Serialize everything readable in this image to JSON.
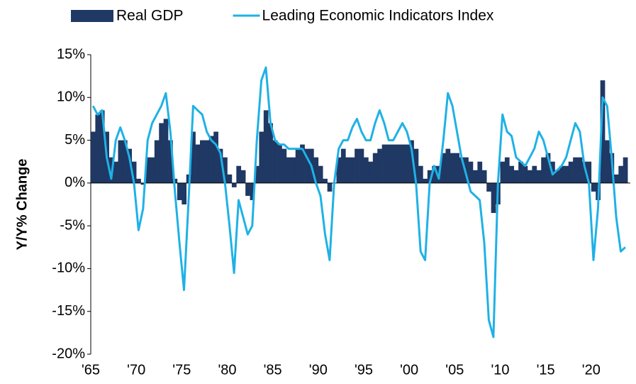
{
  "chart_data": {
    "type": "combo",
    "y_label": "Y/Y% Change",
    "x": [
      1965,
      1965.5,
      1966,
      1966.5,
      1967,
      1967.5,
      1968,
      1968.5,
      1969,
      1969.5,
      1970,
      1970.5,
      1971,
      1971.5,
      1972,
      1972.5,
      1973,
      1973.5,
      1974,
      1974.5,
      1975,
      1975.5,
      1976,
      1976.5,
      1977,
      1977.5,
      1978,
      1978.5,
      1979,
      1979.5,
      1980,
      1980.5,
      1981,
      1981.5,
      1982,
      1982.5,
      1983,
      1983.5,
      1984,
      1984.5,
      1985,
      1985.5,
      1986,
      1986.5,
      1987,
      1987.5,
      1988,
      1988.5,
      1989,
      1989.5,
      1990,
      1990.5,
      1991,
      1991.5,
      1992,
      1992.5,
      1993,
      1993.5,
      1994,
      1994.5,
      1995,
      1995.5,
      1996,
      1996.5,
      1997,
      1997.5,
      1998,
      1998.5,
      1999,
      1999.5,
      2000,
      2000.5,
      2001,
      2001.5,
      2002,
      2002.5,
      2003,
      2003.5,
      2004,
      2004.5,
      2005,
      2005.5,
      2006,
      2006.5,
      2007,
      2007.5,
      2008,
      2008.5,
      2009,
      2009.5,
      2010,
      2010.5,
      2011,
      2011.5,
      2012,
      2012.5,
      2013,
      2013.5,
      2014,
      2014.5,
      2015,
      2015.5,
      2016,
      2016.5,
      2017,
      2017.5,
      2018,
      2018.5,
      2019,
      2019.5,
      2020,
      2020.5,
      2021,
      2021.5,
      2022,
      2022.5,
      2023,
      2023.5
    ],
    "series": [
      {
        "name": "Real GDP",
        "type": "bar",
        "color": "#1f3864",
        "values": [
          6,
          8,
          8.5,
          6,
          3,
          2.5,
          5,
          5,
          4,
          2.5,
          0.5,
          -0.2,
          3,
          3,
          5,
          7,
          7.5,
          5,
          0.5,
          -2,
          -2.5,
          1,
          6,
          4.5,
          5,
          5,
          5.5,
          6,
          4,
          3,
          1,
          -0.5,
          2,
          1.5,
          -1.5,
          -2,
          2,
          6,
          8.5,
          7,
          5,
          4.5,
          4,
          3,
          3,
          4,
          4.5,
          4,
          4,
          3,
          2,
          0.5,
          -1,
          0,
          3,
          4,
          3,
          3,
          4,
          4,
          3,
          2.5,
          3.5,
          4,
          4.5,
          4.5,
          4.5,
          4.5,
          4.5,
          4.5,
          5,
          4,
          2,
          0.5,
          1.5,
          2,
          2,
          3.5,
          4,
          3.5,
          3.5,
          3,
          3,
          2.5,
          1.5,
          2.5,
          1.5,
          -1,
          -3.5,
          -2.5,
          2.5,
          3,
          2,
          1.5,
          2.5,
          2,
          1.5,
          2,
          1.5,
          3,
          3.5,
          2.5,
          1.5,
          2,
          2,
          2.5,
          3,
          3,
          2.5,
          2.5,
          -1,
          -2,
          12,
          5,
          3.5,
          1,
          2,
          3
        ]
      },
      {
        "name": "Leading Economic Indicators Index",
        "type": "line",
        "color": "#1fb1e6",
        "values": [
          9,
          8,
          8.5,
          3,
          0.5,
          5,
          6.5,
          5,
          3,
          0,
          -5.5,
          -3,
          5,
          7,
          8,
          9,
          10.5,
          6,
          -1,
          -7,
          -12.5,
          -2,
          9,
          8.5,
          8,
          6,
          5,
          4.5,
          3.5,
          0,
          -5,
          -10.5,
          -2,
          -4,
          -6,
          -5,
          5,
          12,
          13.5,
          7,
          5,
          4.5,
          4.5,
          4,
          4,
          4,
          4,
          3,
          2,
          0,
          -1.5,
          -6,
          -9,
          0,
          4,
          5,
          5,
          6.5,
          7.5,
          6,
          5,
          5,
          7,
          8.5,
          7,
          5,
          5,
          6,
          7,
          6,
          4,
          0,
          -8,
          -9,
          0,
          2,
          0.5,
          5,
          10.5,
          9,
          6,
          3,
          1,
          -1,
          -1.5,
          -2,
          -7,
          -16,
          -18,
          0,
          8,
          6,
          5.5,
          3,
          2.5,
          2,
          3,
          4,
          6,
          5,
          3,
          1,
          1.5,
          2,
          3,
          5,
          7,
          6,
          2,
          0,
          -9,
          -3,
          10,
          9,
          3,
          -4,
          -8,
          -7.5
        ]
      }
    ],
    "xlim": [
      1965,
      2024.3
    ],
    "xticks": [
      {
        "value": 1965,
        "label": "'65"
      },
      {
        "value": 1970,
        "label": "'70"
      },
      {
        "value": 1975,
        "label": "'75"
      },
      {
        "value": 1980,
        "label": "'80"
      },
      {
        "value": 1985,
        "label": "'85"
      },
      {
        "value": 1990,
        "label": "'90"
      },
      {
        "value": 1995,
        "label": "'95"
      },
      {
        "value": 2000,
        "label": "'00"
      },
      {
        "value": 2005,
        "label": "'05"
      },
      {
        "value": 2010,
        "label": "'10"
      },
      {
        "value": 2015,
        "label": "'15"
      },
      {
        "value": 2020,
        "label": "'20"
      }
    ],
    "ylim": [
      -20,
      15
    ],
    "yticks": [
      {
        "value": -20,
        "label": "-20%"
      },
      {
        "value": -15,
        "label": "-15%"
      },
      {
        "value": -10,
        "label": "-10%"
      },
      {
        "value": -5,
        "label": "-5%"
      },
      {
        "value": 0,
        "label": "0%"
      },
      {
        "value": 5,
        "label": "5%"
      },
      {
        "value": 10,
        "label": "10%"
      },
      {
        "value": 15,
        "label": "15%"
      }
    ],
    "grid": false
  }
}
